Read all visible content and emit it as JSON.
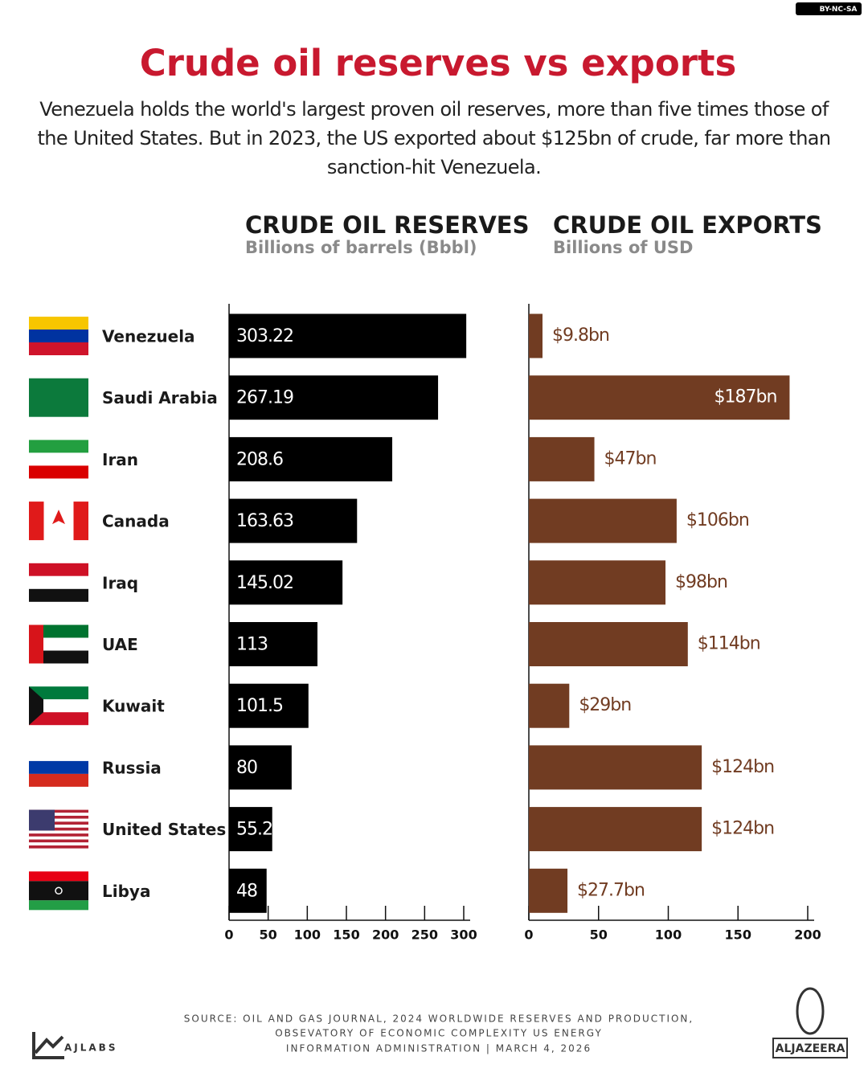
{
  "license": "BY-NC-SA",
  "title": "Crude oil reserves vs exports",
  "subtitle": "Venezuela holds the world's largest proven oil reserves, more than five times those of the United States. But in 2023, the US exported about $125bn of crude, far more than sanction-hit Venezuela.",
  "chart_data": [
    {
      "type": "bar",
      "orientation": "horizontal",
      "title": "CRUDE OIL RESERVES",
      "subtitle": "Billions of barrels (Bbbl)",
      "categories": [
        "Venezuela",
        "Saudi Arabia",
        "Iran",
        "Canada",
        "Iraq",
        "UAE",
        "Kuwait",
        "Russia",
        "United States",
        "Libya"
      ],
      "values": [
        303.22,
        267.19,
        208.6,
        163.63,
        145.02,
        113,
        101.5,
        80,
        55.2,
        48
      ],
      "color": "#000000",
      "xlim": [
        0,
        300
      ],
      "xticks": [
        0,
        50,
        100,
        150,
        200,
        250,
        300
      ]
    },
    {
      "type": "bar",
      "orientation": "horizontal",
      "title": "CRUDE OIL EXPORTS",
      "subtitle": "Billions of USD",
      "values": [
        9.8,
        187,
        47,
        106,
        98,
        114,
        29,
        124,
        124,
        27.7
      ],
      "value_labels": [
        "$9.8bn",
        "$187bn",
        "$47bn",
        "$106bn",
        "$98bn",
        "$114bn",
        "$29bn",
        "$124bn",
        "$124bn",
        "$27.7bn"
      ],
      "color": "#713c22",
      "xlim": [
        0,
        200
      ],
      "xticks": [
        0,
        50,
        100,
        150,
        200
      ]
    }
  ],
  "source": [
    "SOURCE:  OIL AND GAS JOURNAL, 2024 WORLDWIDE RESERVES AND PRODUCTION,",
    "OBSEVATORY OF ECONOMIC COMPLEXITY US ENERGY",
    "INFORMATION ADMINISTRATION   |   MARCH 4, 2026"
  ],
  "credit": "AJLABS",
  "logo": "ALJAZEERA"
}
